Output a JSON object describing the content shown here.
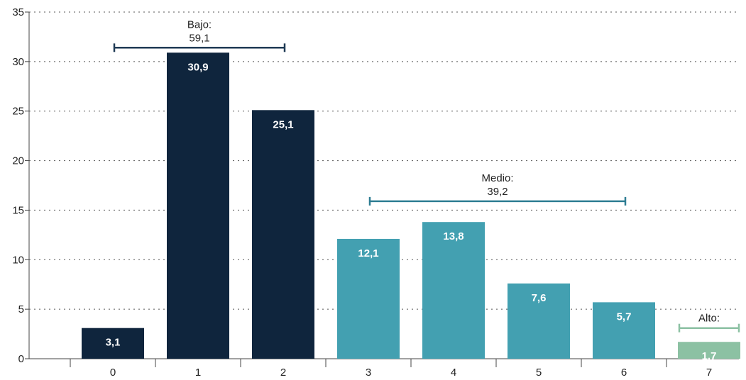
{
  "chart_data": {
    "type": "bar",
    "categories": [
      "0",
      "1",
      "2",
      "3",
      "4",
      "5",
      "6",
      "7"
    ],
    "values": [
      3.1,
      30.9,
      25.1,
      12.1,
      13.8,
      7.6,
      5.7,
      1.7
    ],
    "value_labels": [
      "3,1",
      "30,9",
      "25,1",
      "12,1",
      "13,8",
      "7,6",
      "5,7",
      "1,7"
    ],
    "bar_colors": [
      "#0f253d",
      "#0f253d",
      "#0f253d",
      "#43a0b1",
      "#43a0b1",
      "#43a0b1",
      "#43a0b1",
      "#8cc1a3"
    ],
    "ylim": [
      0,
      35
    ],
    "yticks": [
      "0",
      "5",
      "10",
      "15",
      "20",
      "25",
      "30",
      "35"
    ],
    "grid": "horizontal dotted",
    "groups": [
      {
        "label": "Bajo:",
        "value": 59.1,
        "value_label": "59,1",
        "from": 0,
        "to": 2,
        "level": 31.4,
        "color": "#1f3a55"
      },
      {
        "label": "Medio:",
        "value": 39.2,
        "value_label": "39,2",
        "from": 3,
        "to": 6,
        "level": 15.9,
        "color": "#2e7d93"
      },
      {
        "label": "Alto:",
        "value_label": "",
        "from": 7,
        "to": 7,
        "level": 3.1,
        "color": "#8cc1a3"
      }
    ]
  }
}
